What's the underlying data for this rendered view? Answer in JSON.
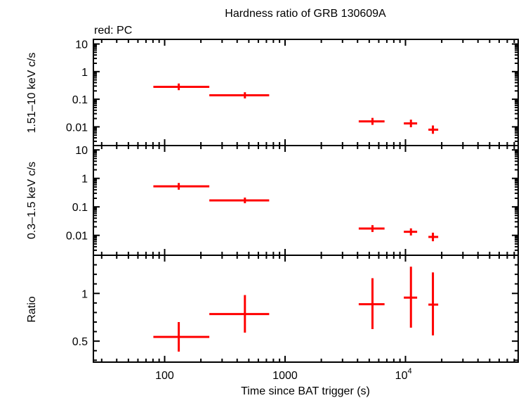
{
  "chart_data": {
    "type": "scatter",
    "title": "Hardness ratio of GRB 130609A",
    "subtitle": "red: PC",
    "xlabel": "Time since BAT trigger (s)",
    "xscale": "log",
    "xlim": [
      25.6,
      86300
    ],
    "x_tick_labels": [
      {
        "value": 100,
        "label": "100"
      },
      {
        "value": 1000,
        "label": "1000"
      },
      {
        "value": 10000,
        "label": "10",
        "sup": "4"
      }
    ],
    "series_color": "#ff0000",
    "x": [
      131,
      464,
      5320,
      11100,
      16900
    ],
    "x_err_low": [
      80.6,
      235,
      4090,
      9690,
      15500
    ],
    "x_err_high": [
      235,
      738,
      6700,
      12500,
      18700
    ],
    "panels": [
      {
        "ylabel": "1.51–10 keV c/s",
        "yscale": "log",
        "ylim": [
          0.0021,
          14.7
        ],
        "y_tick_labels": [
          {
            "value": 10,
            "label": "10"
          },
          {
            "value": 1,
            "label": "1"
          },
          {
            "value": 0.1,
            "label": "0.1"
          },
          {
            "value": 0.01,
            "label": "0.01"
          }
        ],
        "y": [
          0.281,
          0.139,
          0.0158,
          0.0133,
          0.0079
        ],
        "y_err_low": [
          0.213,
          0.107,
          0.0118,
          0.0097,
          0.0056
        ],
        "y_err_high": [
          0.371,
          0.179,
          0.0211,
          0.0182,
          0.0112
        ]
      },
      {
        "ylabel": "0.3–1.5 keV c/s",
        "yscale": "log",
        "ylim": [
          0.002,
          14.2
        ],
        "y_tick_labels": [
          {
            "value": 10,
            "label": "10"
          },
          {
            "value": 1,
            "label": "1"
          },
          {
            "value": 0.1,
            "label": "0.1"
          },
          {
            "value": 0.01,
            "label": "0.01"
          }
        ],
        "y": [
          0.526,
          0.169,
          0.0173,
          0.0133,
          0.0088
        ],
        "y_err_low": [
          0.4,
          0.134,
          0.0131,
          0.0099,
          0.0062
        ],
        "y_err_high": [
          0.69,
          0.212,
          0.0228,
          0.0176,
          0.0124
        ]
      },
      {
        "ylabel": "Ratio",
        "yscale": "linear",
        "ylim": [
          0.28,
          1.4
        ],
        "y_tick_labels": [
          {
            "value": 1,
            "label": "1"
          },
          {
            "value": 0.5,
            "label": "0.5"
          }
        ],
        "y": [
          0.544,
          0.784,
          0.887,
          0.956,
          0.883
        ],
        "y_err_low": [
          0.39,
          0.589,
          0.626,
          0.641,
          0.56
        ],
        "y_err_high": [
          0.7,
          0.983,
          1.16,
          1.28,
          1.22
        ]
      }
    ]
  }
}
